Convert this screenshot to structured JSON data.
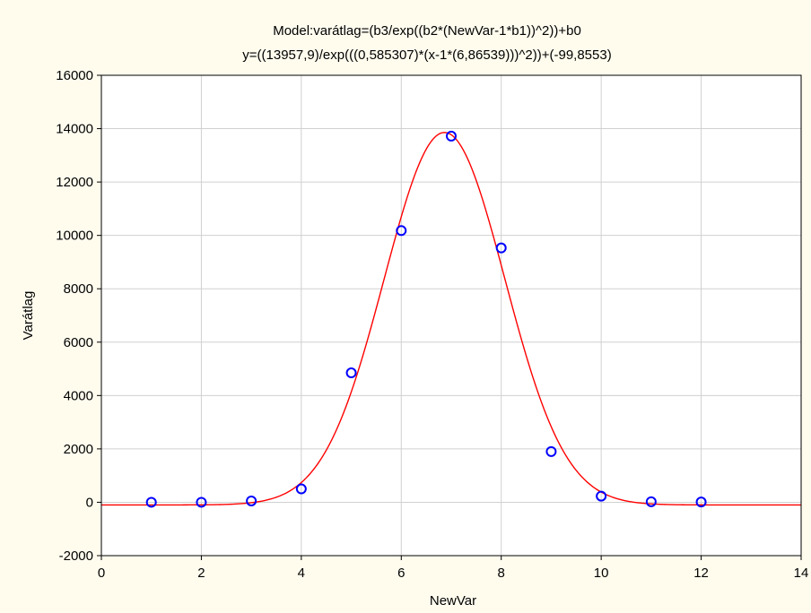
{
  "chart_data": {
    "type": "scatter",
    "title": "Model:varátlag=(b3/exp((b2*(NewVar-1*b1))^2))+b0",
    "subtitle": "y=((13957,9)/exp(((0,585307)*(x-1*(6,86539)))^2))+(-99,8553)",
    "xlabel": "NewVar",
    "ylabel": "Varátlag",
    "xlim": [
      0,
      14
    ],
    "ylim": [
      -2000,
      16000
    ],
    "x_ticks": [
      0,
      2,
      4,
      6,
      8,
      10,
      12,
      14
    ],
    "y_ticks": [
      -2000,
      0,
      2000,
      4000,
      6000,
      8000,
      10000,
      12000,
      14000,
      16000
    ],
    "x_tick_labels": [
      "0",
      "2",
      "4",
      "6",
      "8",
      "10",
      "12",
      "14"
    ],
    "y_tick_labels": [
      "-2000",
      "0",
      "2000",
      "4000",
      "6000",
      "8000",
      "10000",
      "12000",
      "14000",
      "16000"
    ],
    "grid": true,
    "points": {
      "x": [
        1,
        2,
        3,
        4,
        5,
        6,
        7,
        8,
        9,
        10,
        11,
        12
      ],
      "y": [
        0,
        0,
        50,
        500,
        4850,
        10180,
        13720,
        9530,
        1900,
        230,
        20,
        10
      ],
      "color": "#0000ff"
    },
    "fit": {
      "b3": 13957.9,
      "b2": 0.585307,
      "b1": 6.86539,
      "b0": -99.8553,
      "color": "#ff0000"
    }
  }
}
